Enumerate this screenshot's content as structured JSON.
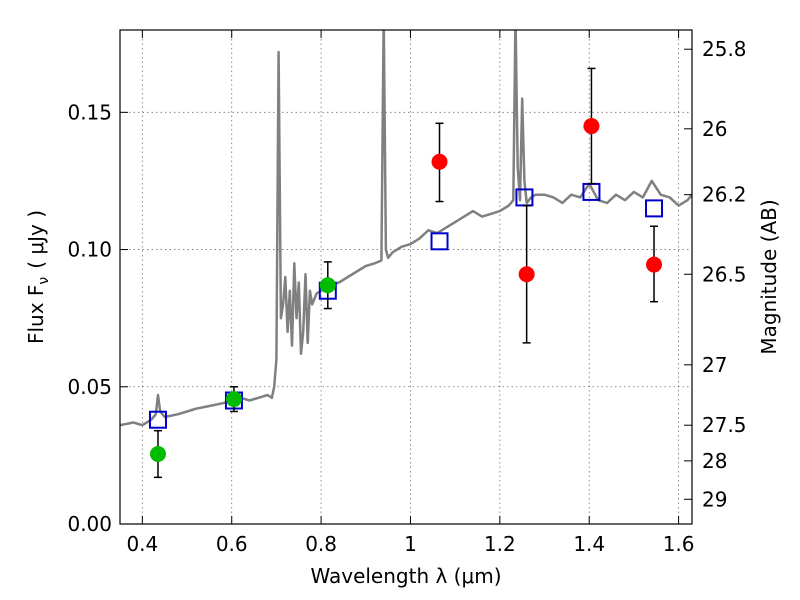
{
  "chart_data": {
    "type": "scatter",
    "xlabel": "Wavelength  λ (μm)",
    "ylabel_left": "Flux  F",
    "ylabel_left_sub": "ν",
    "ylabel_left_unit": "( μJy )",
    "ylabel_right": "Magnitude (AB)",
    "xlim": [
      0.35,
      1.63
    ],
    "ylim": [
      0.0,
      0.18
    ],
    "grid": true,
    "x_ticks": [
      0.4,
      0.6,
      0.8,
      1.0,
      1.2,
      1.4,
      1.6
    ],
    "x_tick_labels": [
      "0.4",
      "0.6",
      "0.8",
      "1",
      "1.2",
      "1.4",
      "1.6"
    ],
    "y_ticks": [
      0.0,
      0.05,
      0.1,
      0.15
    ],
    "y_tick_labels": [
      "0.00",
      "0.05",
      "0.10",
      "0.15"
    ],
    "right_axis": {
      "tick_labels": [
        "25.8",
        "26",
        "26.2",
        "26.5",
        "27",
        "27.5",
        "28",
        "29"
      ],
      "tick_flux": [
        0.173,
        0.144,
        0.12,
        0.091,
        0.058,
        0.036,
        0.023,
        0.009
      ]
    },
    "series": [
      {
        "marker": "circle",
        "color": "#00bb00",
        "points": [
          {
            "x": 0.435,
            "y": 0.0255,
            "yerr_low": 0.0085,
            "yerr_high": 0.0085
          },
          {
            "x": 0.605,
            "y": 0.0455,
            "yerr_low": 0.0045,
            "yerr_high": 0.0045
          },
          {
            "x": 0.815,
            "y": 0.087,
            "yerr_low": 0.0085,
            "yerr_high": 0.0085
          }
        ]
      },
      {
        "marker": "circle",
        "color": "#ff0000",
        "points": [
          {
            "x": 1.065,
            "y": 0.132,
            "yerr_low": 0.0145,
            "yerr_high": 0.014
          },
          {
            "x": 1.26,
            "y": 0.091,
            "yerr_low": 0.025,
            "yerr_high": 0.025
          },
          {
            "x": 1.405,
            "y": 0.145,
            "yerr_low": 0.021,
            "yerr_high": 0.021
          },
          {
            "x": 1.545,
            "y": 0.0945,
            "yerr_low": 0.0135,
            "yerr_high": 0.014
          }
        ]
      },
      {
        "marker": "square",
        "color": "#0000cc",
        "points": [
          {
            "x": 0.435,
            "y": 0.038
          },
          {
            "x": 0.605,
            "y": 0.045
          },
          {
            "x": 0.815,
            "y": 0.085
          },
          {
            "x": 1.065,
            "y": 0.103
          },
          {
            "x": 1.255,
            "y": 0.119
          },
          {
            "x": 1.405,
            "y": 0.121
          },
          {
            "x": 1.545,
            "y": 0.115
          }
        ]
      },
      {
        "type": "line",
        "color": "#808080",
        "x": [
          0.35,
          0.38,
          0.4,
          0.42,
          0.43,
          0.435,
          0.44,
          0.45,
          0.48,
          0.5,
          0.52,
          0.55,
          0.58,
          0.6,
          0.62,
          0.64,
          0.66,
          0.68,
          0.69,
          0.695,
          0.7,
          0.705,
          0.71,
          0.715,
          0.72,
          0.725,
          0.73,
          0.735,
          0.74,
          0.745,
          0.75,
          0.755,
          0.76,
          0.765,
          0.77,
          0.775,
          0.78,
          0.79,
          0.8,
          0.82,
          0.84,
          0.86,
          0.88,
          0.9,
          0.92,
          0.935,
          0.94,
          0.945,
          0.95,
          0.96,
          0.97,
          0.98,
          1.0,
          1.02,
          1.04,
          1.06,
          1.08,
          1.1,
          1.12,
          1.14,
          1.16,
          1.18,
          1.2,
          1.22,
          1.23,
          1.235,
          1.24,
          1.245,
          1.25,
          1.255,
          1.26,
          1.265,
          1.27,
          1.28,
          1.3,
          1.32,
          1.34,
          1.36,
          1.38,
          1.4,
          1.42,
          1.44,
          1.46,
          1.48,
          1.5,
          1.52,
          1.54,
          1.56,
          1.58,
          1.6,
          1.62,
          1.63
        ],
        "y": [
          0.036,
          0.037,
          0.036,
          0.038,
          0.04,
          0.047,
          0.041,
          0.039,
          0.04,
          0.041,
          0.042,
          0.043,
          0.044,
          0.045,
          0.046,
          0.045,
          0.046,
          0.047,
          0.046,
          0.05,
          0.06,
          0.172,
          0.075,
          0.08,
          0.09,
          0.07,
          0.085,
          0.065,
          0.095,
          0.075,
          0.088,
          0.062,
          0.07,
          0.091,
          0.066,
          0.085,
          0.08,
          0.084,
          0.085,
          0.087,
          0.088,
          0.09,
          0.092,
          0.094,
          0.095,
          0.096,
          0.185,
          0.1,
          0.097,
          0.099,
          0.1,
          0.101,
          0.102,
          0.104,
          0.107,
          0.106,
          0.108,
          0.11,
          0.112,
          0.114,
          0.112,
          0.113,
          0.114,
          0.116,
          0.118,
          0.185,
          0.13,
          0.118,
          0.155,
          0.125,
          0.117,
          0.118,
          0.119,
          0.12,
          0.12,
          0.119,
          0.117,
          0.12,
          0.119,
          0.124,
          0.118,
          0.117,
          0.12,
          0.118,
          0.121,
          0.119,
          0.125,
          0.12,
          0.119,
          0.116,
          0.118,
          0.12
        ]
      }
    ]
  }
}
